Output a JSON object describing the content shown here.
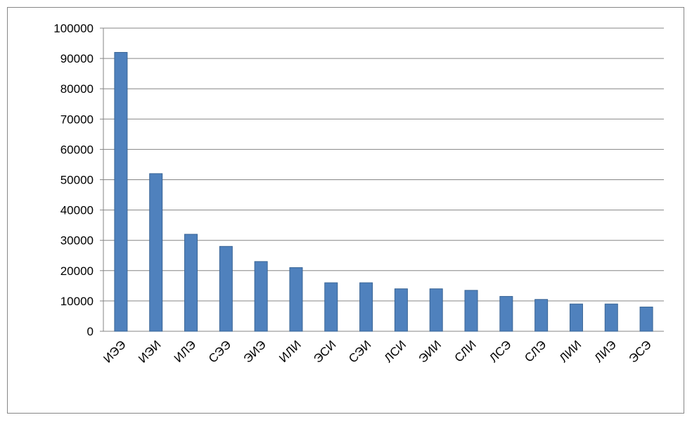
{
  "chart_data": {
    "type": "bar",
    "categories": [
      "ИЭЭ",
      "ИЭИ",
      "ИЛЭ",
      "СЭЭ",
      "ЭИЭ",
      "ИЛИ",
      "ЭСИ",
      "СЭИ",
      "ЛСИ",
      "ЭИИ",
      "СЛИ",
      "ЛСЭ",
      "СЛЭ",
      "ЛИИ",
      "ЛИЭ",
      "ЭСЭ"
    ],
    "values": [
      92000,
      52000,
      32000,
      28000,
      23000,
      21000,
      16000,
      16000,
      14000,
      14000,
      13500,
      11500,
      10500,
      9000,
      9000,
      8000
    ],
    "color": "#4f81bd",
    "ylim": [
      0,
      100000
    ],
    "yticks": [
      0,
      10000,
      20000,
      30000,
      40000,
      50000,
      60000,
      70000,
      80000,
      90000,
      100000
    ],
    "grid": true
  }
}
